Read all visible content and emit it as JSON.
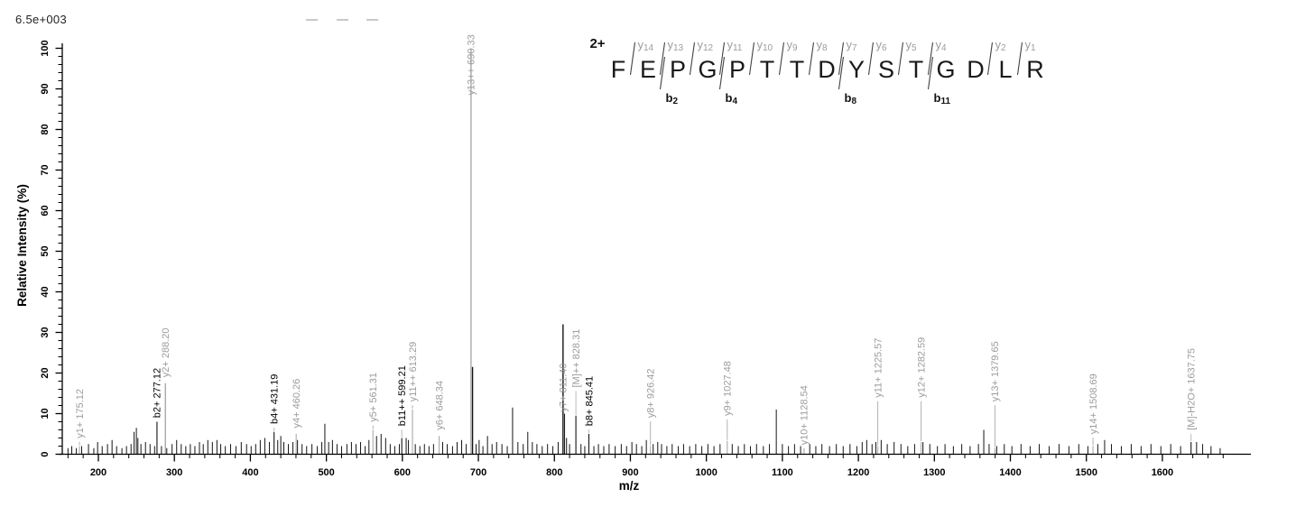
{
  "colors": {
    "background": "#ffffff",
    "peak": "#141414",
    "matched_peak": "#a9a9a9",
    "connector": "#b4b4b4",
    "y_label": "#9c9c9c",
    "b_label": "#000000",
    "axis": "#000000",
    "residue": "#1a1a1a"
  },
  "chart_data": {
    "type": "bar",
    "subtype": "ms2-fragmentation-spectrum",
    "xlabel": "m/z",
    "ylabel": "Relative  Intensity (%)",
    "intensity_scale": "6.5e+003",
    "precursor_charge": "2+",
    "x_axis": {
      "min": 152,
      "max": 1715,
      "major_step": 100,
      "minor_step": 20,
      "tick_labels": [
        "200",
        "300",
        "400",
        "500",
        "600",
        "700",
        "800",
        "900",
        "1000",
        "1100",
        "1200",
        "1300",
        "1400",
        "1500",
        "1600"
      ]
    },
    "y_axis": {
      "min": 0,
      "max": 100,
      "major_step": 10,
      "minor_step": 2,
      "tick_labels": [
        "0",
        "10",
        "20",
        "30",
        "40",
        "50",
        "60",
        "70",
        "80",
        "90",
        "100"
      ]
    },
    "peptide": {
      "sequence": [
        "F",
        "E",
        "P",
        "G",
        "P",
        "T",
        "T",
        "D",
        "Y",
        "S",
        "T",
        "G",
        "D",
        "L",
        "R"
      ],
      "y_ions": [
        {
          "num": 14,
          "pos": 1
        },
        {
          "num": 13,
          "pos": 2
        },
        {
          "num": 12,
          "pos": 3
        },
        {
          "num": 11,
          "pos": 4
        },
        {
          "num": 10,
          "pos": 5
        },
        {
          "num": 9,
          "pos": 6
        },
        {
          "num": 8,
          "pos": 7
        },
        {
          "num": 7,
          "pos": 8
        },
        {
          "num": 6,
          "pos": 9
        },
        {
          "num": 5,
          "pos": 10
        },
        {
          "num": 4,
          "pos": 11
        },
        {
          "num": 2,
          "pos": 13
        },
        {
          "num": 1,
          "pos": 14
        }
      ],
      "b_ions": [
        {
          "num": 2,
          "pos": 2
        },
        {
          "num": 4,
          "pos": 4
        },
        {
          "num": 8,
          "pos": 8
        },
        {
          "num": 11,
          "pos": 11
        }
      ]
    },
    "labeled_peaks": [
      {
        "mz": 175.12,
        "h": 2,
        "label": "y1+ 175.12",
        "series": "y",
        "peak_color": "gray",
        "label_base": 3.5
      },
      {
        "mz": 277.12,
        "h": 8,
        "label": "b2+ 277.12",
        "series": "b",
        "peak_color": "black",
        "label_base": 8.5
      },
      {
        "mz": 288.2,
        "h": 17.5,
        "label": "y2+ 288.20",
        "series": "y",
        "peak_color": "gray",
        "label_base": 18.5
      },
      {
        "mz": 431.19,
        "h": 5.5,
        "label": "b4+ 431.19",
        "series": "b",
        "peak_color": "black",
        "label_base": 7
      },
      {
        "mz": 460.26,
        "h": 5,
        "label": "y4+ 460.26",
        "series": "y",
        "peak_color": "gray",
        "label_base": 6
      },
      {
        "mz": 561.31,
        "h": 6,
        "label": "y5+ 561.31",
        "series": "y",
        "peak_color": "gray",
        "label_base": 7.5
      },
      {
        "mz": 599.21,
        "h": 4,
        "label": "b11++ 599.21",
        "series": "b",
        "peak_color": "black",
        "label_base": 6.5
      },
      {
        "mz": 613.29,
        "h": 11,
        "label": "y11++ 613.29",
        "series": "y",
        "peak_color": "gray",
        "label_base": 12.5
      },
      {
        "mz": 648.34,
        "h": 4.5,
        "label": "y6+ 648.34",
        "series": "y",
        "peak_color": "gray",
        "label_base": 5.5
      },
      {
        "mz": 690.33,
        "h": 100,
        "label": "y13++ 690.33",
        "series": "y",
        "peak_color": "gray",
        "label_base": 88
      },
      {
        "mz": 811.4,
        "h": 32,
        "label": "y7+ 811.40",
        "series": "y",
        "peak_color": "black",
        "label_base": 10
      },
      {
        "mz": 828.31,
        "h": 9.5,
        "label": "[M]++ 828.31",
        "series": "precursor",
        "peak_color": "black",
        "label_base": 16
      },
      {
        "mz": 845.41,
        "h": 5,
        "label": "b8+ 845.41",
        "series": "b",
        "peak_color": "black",
        "label_base": 6.5
      },
      {
        "mz": 926.42,
        "h": 2,
        "label": "y8+ 926.42",
        "series": "y",
        "peak_color": "gray",
        "label_base": 8.5
      },
      {
        "mz": 1027.48,
        "h": 3.3,
        "label": "y9+ 1027.48",
        "series": "y",
        "peak_color": "gray",
        "label_base": 9
      },
      {
        "mz": 1128.54,
        "h": 1.5,
        "label": "y10+ 1128.54",
        "series": "y",
        "peak_color": "gray",
        "label_base": 1.8
      },
      {
        "mz": 1225.57,
        "h": 2,
        "label": "y11+ 1225.57",
        "series": "y",
        "peak_color": "gray",
        "label_base": 13.5
      },
      {
        "mz": 1282.59,
        "h": 3,
        "label": "y12+ 1282.59",
        "series": "y",
        "peak_color": "gray",
        "label_base": 13.5
      },
      {
        "mz": 1379.65,
        "h": 1.5,
        "label": "y13+ 1379.65",
        "series": "y",
        "peak_color": "gray",
        "label_base": 12.5
      },
      {
        "mz": 1508.69,
        "h": 2,
        "label": "y14+ 1508.69",
        "series": "y",
        "peak_color": "gray",
        "label_base": 4.5
      },
      {
        "mz": 1637.75,
        "h": 3,
        "label": "[M]-H2O+ 1637.75",
        "series": "precursor",
        "peak_color": "black",
        "label_base": 5.5
      }
    ],
    "unlabeled_peaks": [
      [
        160,
        1.5
      ],
      [
        165,
        2
      ],
      [
        171,
        1.5
      ],
      [
        178,
        2
      ],
      [
        187,
        2.5
      ],
      [
        194,
        1.5
      ],
      [
        199,
        3
      ],
      [
        205,
        2
      ],
      [
        212,
        2.5
      ],
      [
        218,
        3.5
      ],
      [
        224,
        2
      ],
      [
        231,
        1.5
      ],
      [
        237,
        2
      ],
      [
        243,
        2.5
      ],
      [
        247,
        5.5
      ],
      [
        250,
        6.5
      ],
      [
        252,
        4
      ],
      [
        256,
        2.5
      ],
      [
        262,
        3
      ],
      [
        268,
        2.5
      ],
      [
        274,
        2
      ],
      [
        283,
        2
      ],
      [
        290,
        1.5
      ],
      [
        297,
        2.5
      ],
      [
        303,
        3.5
      ],
      [
        309,
        2.5
      ],
      [
        315,
        2
      ],
      [
        321,
        2.5
      ],
      [
        327,
        2
      ],
      [
        333,
        3
      ],
      [
        338,
        2.5
      ],
      [
        344,
        3.5
      ],
      [
        350,
        3
      ],
      [
        356,
        3.5
      ],
      [
        361,
        2.5
      ],
      [
        367,
        2
      ],
      [
        374,
        2.5
      ],
      [
        381,
        2
      ],
      [
        388,
        3
      ],
      [
        395,
        2.5
      ],
      [
        401,
        2
      ],
      [
        407,
        2.5
      ],
      [
        413,
        3.5
      ],
      [
        419,
        4
      ],
      [
        425,
        3
      ],
      [
        436,
        3.5
      ],
      [
        440,
        4.5
      ],
      [
        444,
        3
      ],
      [
        450,
        2.5
      ],
      [
        456,
        3
      ],
      [
        462,
        3.5
      ],
      [
        468,
        2.5
      ],
      [
        474,
        2
      ],
      [
        481,
        2.5
      ],
      [
        488,
        2
      ],
      [
        494,
        3
      ],
      [
        498,
        7.5
      ],
      [
        503,
        3
      ],
      [
        508,
        3.5
      ],
      [
        514,
        2.5
      ],
      [
        520,
        2
      ],
      [
        527,
        2.5
      ],
      [
        533,
        3
      ],
      [
        539,
        2.5
      ],
      [
        545,
        3
      ],
      [
        551,
        2
      ],
      [
        556,
        3.5
      ],
      [
        566,
        4.5
      ],
      [
        572,
        5
      ],
      [
        578,
        4
      ],
      [
        584,
        2.5
      ],
      [
        590,
        2
      ],
      [
        596,
        2.5
      ],
      [
        605,
        4
      ],
      [
        608,
        3.5
      ],
      [
        617,
        2.5
      ],
      [
        623,
        2
      ],
      [
        629,
        2.5
      ],
      [
        635,
        2
      ],
      [
        641,
        2.5
      ],
      [
        653,
        3
      ],
      [
        659,
        2.5
      ],
      [
        666,
        2
      ],
      [
        672,
        3
      ],
      [
        678,
        3.5
      ],
      [
        684,
        2.5
      ],
      [
        692.3,
        21.5
      ],
      [
        697,
        2.5
      ],
      [
        701,
        3.5
      ],
      [
        706,
        2
      ],
      [
        712,
        4.5
      ],
      [
        718,
        2.5
      ],
      [
        724,
        3
      ],
      [
        731,
        2.5
      ],
      [
        738,
        2
      ],
      [
        745,
        11.5
      ],
      [
        752,
        3
      ],
      [
        759,
        2.5
      ],
      [
        765,
        5.5
      ],
      [
        771,
        3
      ],
      [
        777,
        2.5
      ],
      [
        784,
        2
      ],
      [
        791,
        2.5
      ],
      [
        798,
        2
      ],
      [
        805,
        3
      ],
      [
        813.4,
        10
      ],
      [
        816,
        4
      ],
      [
        820,
        2.5
      ],
      [
        835,
        2.5
      ],
      [
        840,
        2
      ],
      [
        852,
        2
      ],
      [
        858,
        2.5
      ],
      [
        865,
        2
      ],
      [
        872,
        2.5
      ],
      [
        880,
        2
      ],
      [
        888,
        2.5
      ],
      [
        895,
        2
      ],
      [
        902,
        3
      ],
      [
        908,
        2.5
      ],
      [
        915,
        2
      ],
      [
        921,
        3.5
      ],
      [
        930,
        2.5
      ],
      [
        936,
        3
      ],
      [
        941,
        2.5
      ],
      [
        948,
        2
      ],
      [
        955,
        2.5
      ],
      [
        963,
        2
      ],
      [
        970,
        2.5
      ],
      [
        978,
        2
      ],
      [
        986,
        2.5
      ],
      [
        994,
        2
      ],
      [
        1002,
        2.5
      ],
      [
        1010,
        2
      ],
      [
        1018,
        2.5
      ],
      [
        1034,
        2.5
      ],
      [
        1042,
        2
      ],
      [
        1050,
        2.5
      ],
      [
        1058,
        2
      ],
      [
        1066,
        2.5
      ],
      [
        1075,
        2
      ],
      [
        1083,
        2.5
      ],
      [
        1092,
        11
      ],
      [
        1100,
        2.5
      ],
      [
        1108,
        2
      ],
      [
        1116,
        2.5
      ],
      [
        1124,
        2
      ],
      [
        1136,
        2.5
      ],
      [
        1144,
        2
      ],
      [
        1152,
        2.5
      ],
      [
        1162,
        2
      ],
      [
        1171,
        2.5
      ],
      [
        1180,
        2
      ],
      [
        1189,
        2.5
      ],
      [
        1198,
        2
      ],
      [
        1205,
        3
      ],
      [
        1211,
        3.5
      ],
      [
        1218,
        2.5
      ],
      [
        1223,
        3
      ],
      [
        1230,
        3.5
      ],
      [
        1238,
        2.5
      ],
      [
        1247,
        3
      ],
      [
        1256,
        2.5
      ],
      [
        1265,
        2
      ],
      [
        1274,
        2.5
      ],
      [
        1285,
        3
      ],
      [
        1294,
        2.5
      ],
      [
        1304,
        2
      ],
      [
        1314,
        2.5
      ],
      [
        1325,
        2
      ],
      [
        1336,
        2.5
      ],
      [
        1347,
        2
      ],
      [
        1358,
        2.5
      ],
      [
        1365,
        6
      ],
      [
        1372,
        2.5
      ],
      [
        1382,
        2
      ],
      [
        1392,
        2.5
      ],
      [
        1402,
        2
      ],
      [
        1414,
        2.5
      ],
      [
        1426,
        2
      ],
      [
        1438,
        2.5
      ],
      [
        1451,
        2
      ],
      [
        1464,
        2.5
      ],
      [
        1477,
        2
      ],
      [
        1490,
        2.5
      ],
      [
        1502,
        2
      ],
      [
        1515,
        2.5
      ],
      [
        1524,
        3.5
      ],
      [
        1533,
        2.5
      ],
      [
        1546,
        2
      ],
      [
        1559,
        2.5
      ],
      [
        1572,
        2
      ],
      [
        1585,
        2.5
      ],
      [
        1598,
        2
      ],
      [
        1611,
        2.5
      ],
      [
        1624,
        2
      ],
      [
        1645,
        3
      ],
      [
        1653,
        2.5
      ],
      [
        1664,
        2
      ],
      [
        1676,
        1.5
      ]
    ]
  }
}
